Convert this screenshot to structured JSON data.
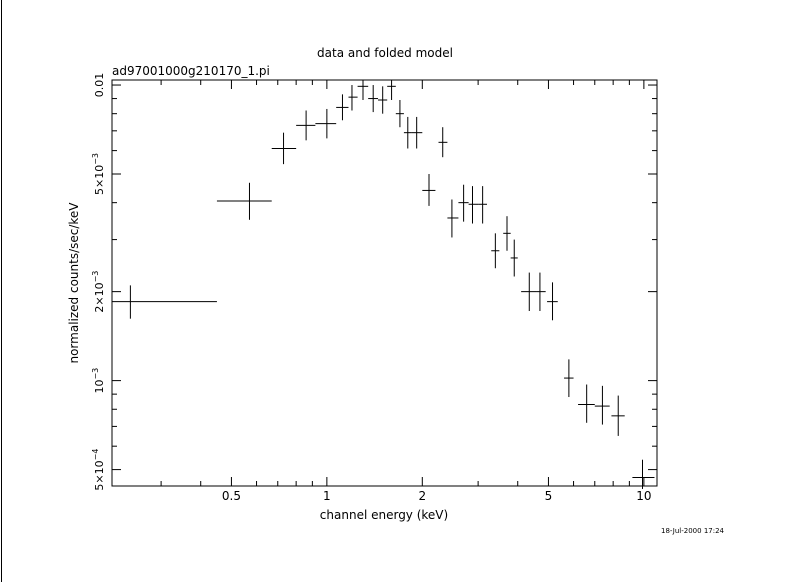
{
  "chart_data": {
    "type": "scatter",
    "title": "data and folded model",
    "subtitle": "ad97001000g210170_1.pi",
    "xlabel": "channel energy (keV)",
    "ylabel": "normalized counts/sec/keV",
    "x_scale": "log",
    "y_scale": "log",
    "xlim": [
      0.21,
      11.0
    ],
    "ylim": [
      0.00044,
      0.0104
    ],
    "x_ticks": [
      {
        "value": 0.5,
        "label": "0.5"
      },
      {
        "value": 1,
        "label": "1"
      },
      {
        "value": 2,
        "label": "2"
      },
      {
        "value": 5,
        "label": "5"
      },
      {
        "value": 10,
        "label": "10"
      }
    ],
    "y_ticks": [
      {
        "value": 0.0005,
        "mantissa": "5×10",
        "exp": "−4",
        "label": ""
      },
      {
        "value": 0.001,
        "mantissa": "10",
        "exp": "−3",
        "label": ""
      },
      {
        "value": 0.002,
        "mantissa": "2×10",
        "exp": "−3",
        "label": ""
      },
      {
        "value": 0.005,
        "mantissa": "5×10",
        "exp": "−3",
        "label": ""
      },
      {
        "value": 0.01,
        "mantissa": "",
        "exp": "",
        "label": "0.01"
      }
    ],
    "grid": false,
    "series": [
      {
        "points": [
          {
            "x": 0.24,
            "xlo": 0.21,
            "xhi": 0.45,
            "y": 0.00185,
            "ylo": 0.00162,
            "yhi": 0.0021
          },
          {
            "x": 0.57,
            "xlo": 0.45,
            "xhi": 0.67,
            "y": 0.00405,
            "ylo": 0.0035,
            "yhi": 0.00467
          },
          {
            "x": 0.73,
            "xlo": 0.67,
            "xhi": 0.8,
            "y": 0.0061,
            "ylo": 0.0054,
            "yhi": 0.0069
          },
          {
            "x": 0.86,
            "xlo": 0.8,
            "xhi": 0.92,
            "y": 0.0073,
            "ylo": 0.0065,
            "yhi": 0.0082
          },
          {
            "x": 1.0,
            "xlo": 0.92,
            "xhi": 1.07,
            "y": 0.0074,
            "ylo": 0.0066,
            "yhi": 0.0083
          },
          {
            "x": 1.12,
            "xlo": 1.07,
            "xhi": 1.17,
            "y": 0.0084,
            "ylo": 0.0076,
            "yhi": 0.0093
          },
          {
            "x": 1.2,
            "xlo": 1.17,
            "xhi": 1.25,
            "y": 0.0091,
            "ylo": 0.0082,
            "yhi": 0.01
          },
          {
            "x": 1.3,
            "xlo": 1.25,
            "xhi": 1.35,
            "y": 0.0099,
            "ylo": 0.0089,
            "yhi": 0.0104
          },
          {
            "x": 1.4,
            "xlo": 1.35,
            "xhi": 1.45,
            "y": 0.009,
            "ylo": 0.0081,
            "yhi": 0.01
          },
          {
            "x": 1.5,
            "xlo": 1.45,
            "xhi": 1.55,
            "y": 0.0089,
            "ylo": 0.008,
            "yhi": 0.0099
          },
          {
            "x": 1.6,
            "xlo": 1.55,
            "xhi": 1.65,
            "y": 0.0099,
            "ylo": 0.0089,
            "yhi": 0.0104
          },
          {
            "x": 1.7,
            "xlo": 1.65,
            "xhi": 1.75,
            "y": 0.008,
            "ylo": 0.0072,
            "yhi": 0.0089
          },
          {
            "x": 1.8,
            "xlo": 1.75,
            "xhi": 1.85,
            "y": 0.0069,
            "ylo": 0.0061,
            "yhi": 0.0078
          },
          {
            "x": 1.92,
            "xlo": 1.85,
            "xhi": 2.0,
            "y": 0.0069,
            "ylo": 0.0061,
            "yhi": 0.0078
          },
          {
            "x": 2.1,
            "xlo": 2.0,
            "xhi": 2.2,
            "y": 0.0044,
            "ylo": 0.0039,
            "yhi": 0.005
          },
          {
            "x": 2.32,
            "xlo": 2.25,
            "xhi": 2.4,
            "y": 0.0064,
            "ylo": 0.0057,
            "yhi": 0.0072
          },
          {
            "x": 2.48,
            "xlo": 2.4,
            "xhi": 2.6,
            "y": 0.00355,
            "ylo": 0.00305,
            "yhi": 0.0041
          },
          {
            "x": 2.7,
            "xlo": 2.6,
            "xhi": 2.8,
            "y": 0.004,
            "ylo": 0.00345,
            "yhi": 0.0046
          },
          {
            "x": 2.88,
            "xlo": 2.8,
            "xhi": 3.0,
            "y": 0.00395,
            "ylo": 0.0034,
            "yhi": 0.00455
          },
          {
            "x": 3.1,
            "xlo": 3.0,
            "xhi": 3.2,
            "y": 0.00395,
            "ylo": 0.0034,
            "yhi": 0.00455
          },
          {
            "x": 3.4,
            "xlo": 3.3,
            "xhi": 3.5,
            "y": 0.00275,
            "ylo": 0.0024,
            "yhi": 0.00315
          },
          {
            "x": 3.7,
            "xlo": 3.6,
            "xhi": 3.8,
            "y": 0.00315,
            "ylo": 0.00275,
            "yhi": 0.0036
          },
          {
            "x": 3.9,
            "xlo": 3.8,
            "xhi": 4.0,
            "y": 0.0026,
            "ylo": 0.00225,
            "yhi": 0.003
          },
          {
            "x": 4.35,
            "xlo": 4.1,
            "xhi": 4.6,
            "y": 0.002,
            "ylo": 0.00172,
            "yhi": 0.00232
          },
          {
            "x": 4.7,
            "xlo": 4.6,
            "xhi": 4.9,
            "y": 0.002,
            "ylo": 0.00172,
            "yhi": 0.00232
          },
          {
            "x": 5.15,
            "xlo": 4.95,
            "xhi": 5.35,
            "y": 0.00185,
            "ylo": 0.0016,
            "yhi": 0.00215
          },
          {
            "x": 5.8,
            "xlo": 5.6,
            "xhi": 6.0,
            "y": 0.00102,
            "ylo": 0.00088,
            "yhi": 0.00118
          },
          {
            "x": 6.6,
            "xlo": 6.2,
            "xhi": 7.0,
            "y": 0.00083,
            "ylo": 0.00072,
            "yhi": 0.00097
          },
          {
            "x": 7.4,
            "xlo": 7.0,
            "xhi": 7.8,
            "y": 0.00082,
            "ylo": 0.00071,
            "yhi": 0.00096
          },
          {
            "x": 8.3,
            "xlo": 7.9,
            "xhi": 8.7,
            "y": 0.00076,
            "ylo": 0.00065,
            "yhi": 0.00089
          },
          {
            "x": 9.9,
            "xlo": 9.2,
            "xhi": 10.8,
            "y": 0.00047,
            "ylo": 0.00043,
            "yhi": 0.00054
          }
        ]
      }
    ]
  },
  "timestamp": "18-Jul-2000 17:24"
}
